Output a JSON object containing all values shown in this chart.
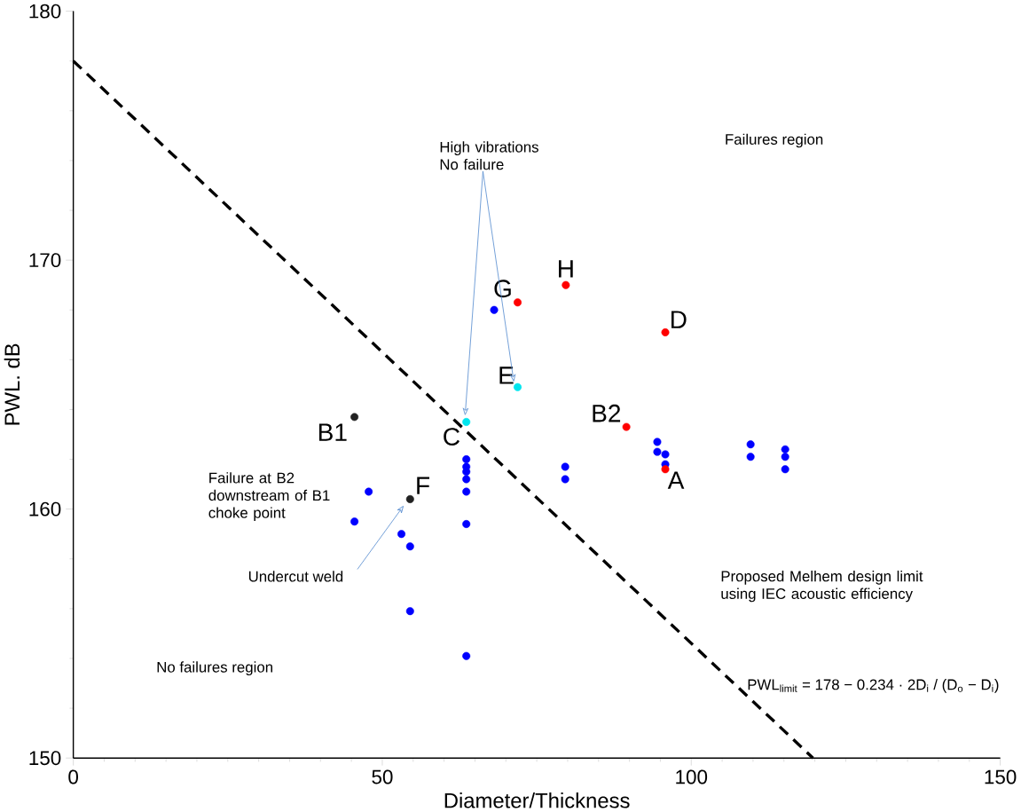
{
  "chart_data": {
    "type": "scatter",
    "xlabel": "Diameter/Thickness",
    "ylabel": "PWL. dB",
    "xlim": [
      0,
      150
    ],
    "ylim": [
      150,
      180
    ],
    "xticks": [
      0,
      50,
      100,
      150
    ],
    "yticks": [
      150,
      160,
      170,
      180
    ],
    "grid": false,
    "series": [
      {
        "color": "#0000ff",
        "marker": "circle",
        "x": [
          68.1,
          63.6,
          63.6,
          63.6,
          63.6,
          63.6,
          63.6,
          63.6,
          54.5,
          53.1,
          45.5,
          47.8,
          54.5,
          79.6,
          79.6,
          94.5,
          94.5,
          95.8,
          95.8,
          109.6,
          109.6,
          115.2,
          115.2,
          115.2
        ],
        "values": [
          168.0,
          162.0,
          161.7,
          161.5,
          161.2,
          160.7,
          159.4,
          154.1,
          158.5,
          159.0,
          159.5,
          160.7,
          155.9,
          161.7,
          161.2,
          162.7,
          162.3,
          162.2,
          161.8,
          162.6,
          162.1,
          162.4,
          162.1,
          161.6
        ]
      },
      {
        "color": "#ff0000",
        "marker": "circle",
        "x": [
          71.9,
          79.7,
          95.8,
          89.5,
          95.8
        ],
        "values": [
          168.3,
          169.0,
          167.1,
          163.3,
          161.6
        ]
      },
      {
        "color": "#00e5ee",
        "marker": "circle",
        "x": [
          71.9,
          63.6
        ],
        "values": [
          164.9,
          163.5
        ]
      },
      {
        "color": "#222222",
        "marker": "circle",
        "x": [
          45.5,
          54.5
        ],
        "values": [
          163.7,
          160.4
        ]
      },
      {
        "type": "line",
        "color": "#000000",
        "line_style": "dashed",
        "marker": "none",
        "x": [
          0,
          119.7
        ],
        "values": [
          178,
          150
        ]
      }
    ],
    "annotations": [
      {
        "text": "G",
        "x": 71.9,
        "y": 168.3
      },
      {
        "text": "H",
        "x": 79.7,
        "y": 169.0
      },
      {
        "text": "D",
        "x": 95.8,
        "y": 167.1
      },
      {
        "text": "B2",
        "x": 89.5,
        "y": 163.3
      },
      {
        "text": "A",
        "x": 95.8,
        "y": 161.6
      },
      {
        "text": "E",
        "x": 71.9,
        "y": 164.9
      },
      {
        "text": "C",
        "x": 63.6,
        "y": 163.5
      },
      {
        "text": "B1",
        "x": 45.5,
        "y": 163.7
      },
      {
        "text": "F",
        "x": 54.5,
        "y": 160.4
      },
      "High  vibrations No failure",
      "Failures region",
      "Failure at B2 downstream of B1 choke point",
      "Undercut weld",
      "No failures region",
      "Proposed Melhem design limit using IEC acoustic efficiency",
      "PWL$_{limit}$ = 178 − 0.234 · 2D$_{i}$ / (D$_{o}$ − D$_{i}$)"
    ]
  }
}
